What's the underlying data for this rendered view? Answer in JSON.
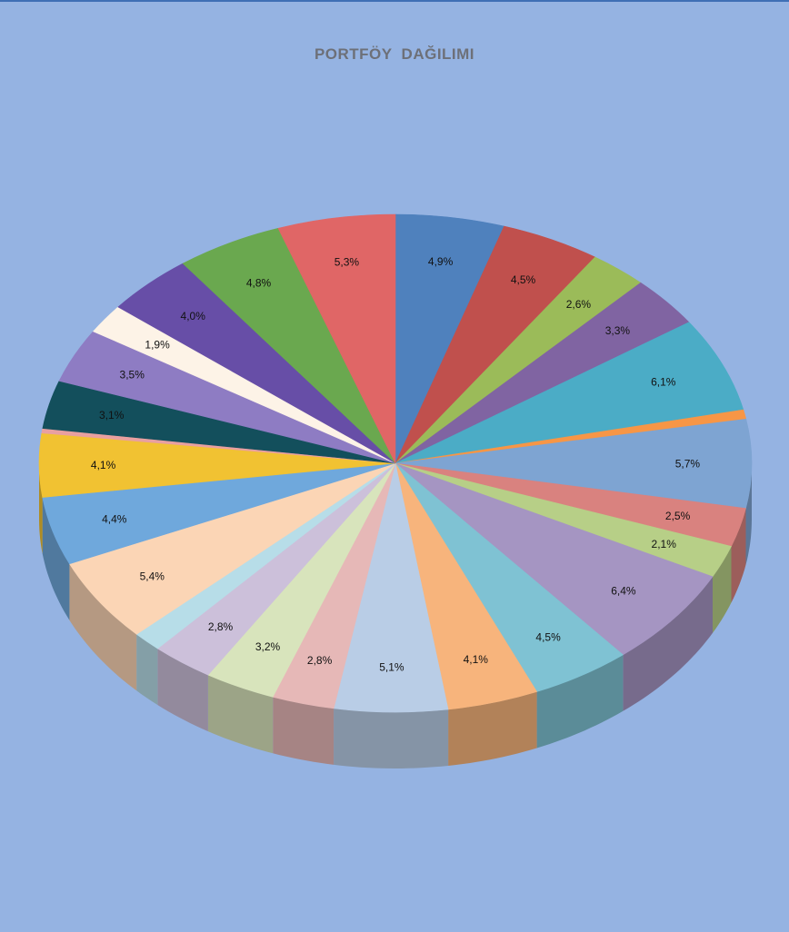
{
  "chart_data": {
    "type": "pie",
    "title": "PORTFÖY  DAĞILIMI",
    "slices": [
      {
        "label": "4,9%",
        "value": 4.9,
        "color": "#4f81bd"
      },
      {
        "label": "4,5%",
        "value": 4.5,
        "color": "#c0504d"
      },
      {
        "label": "2,6%",
        "value": 2.6,
        "color": "#9bbb59"
      },
      {
        "label": "3,3%",
        "value": 3.3,
        "color": "#8064a2"
      },
      {
        "label": "6,1%",
        "value": 6.1,
        "color": "#4bacc6"
      },
      {
        "label": "",
        "value": 0.6,
        "color": "#f79646"
      },
      {
        "label": "5,7%",
        "value": 5.7,
        "color": "#7ea4d2"
      },
      {
        "label": "2,5%",
        "value": 2.5,
        "color": "#d9827f"
      },
      {
        "label": "2,1%",
        "value": 2.1,
        "color": "#b7cf87"
      },
      {
        "label": "6,4%",
        "value": 6.4,
        "color": "#a595c2"
      },
      {
        "label": "4,5%",
        "value": 4.5,
        "color": "#7fc2d3"
      },
      {
        "label": "4,1%",
        "value": 4.1,
        "color": "#f7b47c"
      },
      {
        "label": "5,1%",
        "value": 5.1,
        "color": "#b9cde6"
      },
      {
        "label": "2,8%",
        "value": 2.8,
        "color": "#e6b8b7"
      },
      {
        "label": "3,2%",
        "value": 3.2,
        "color": "#d8e4bc"
      },
      {
        "label": "2,8%",
        "value": 2.8,
        "color": "#ccc0da"
      },
      {
        "label": "",
        "value": 1.3,
        "color": "#b7dde8"
      },
      {
        "label": "5,4%",
        "value": 5.4,
        "color": "#fbd5b5"
      },
      {
        "label": "4,4%",
        "value": 4.4,
        "color": "#6fa8dc"
      },
      {
        "label": "4,1%",
        "value": 4.1,
        "color": "#f1c232"
      },
      {
        "label": "",
        "value": 0.3,
        "color": "#e8a0a0"
      },
      {
        "label": "3,1%",
        "value": 3.1,
        "color": "#134f5c"
      },
      {
        "label": "3,5%",
        "value": 3.5,
        "color": "#8e7cc3"
      },
      {
        "label": "1,9%",
        "value": 1.9,
        "color": "#fdf3e7"
      },
      {
        "label": "4,0%",
        "value": 4.0,
        "color": "#674ea7"
      },
      {
        "label": "4,8%",
        "value": 4.8,
        "color": "#6aa84f"
      },
      {
        "label": "5,3%",
        "value": 5.3,
        "color": "#e06666"
      }
    ],
    "legend": "none",
    "grid": false,
    "style": "3d-pie"
  }
}
